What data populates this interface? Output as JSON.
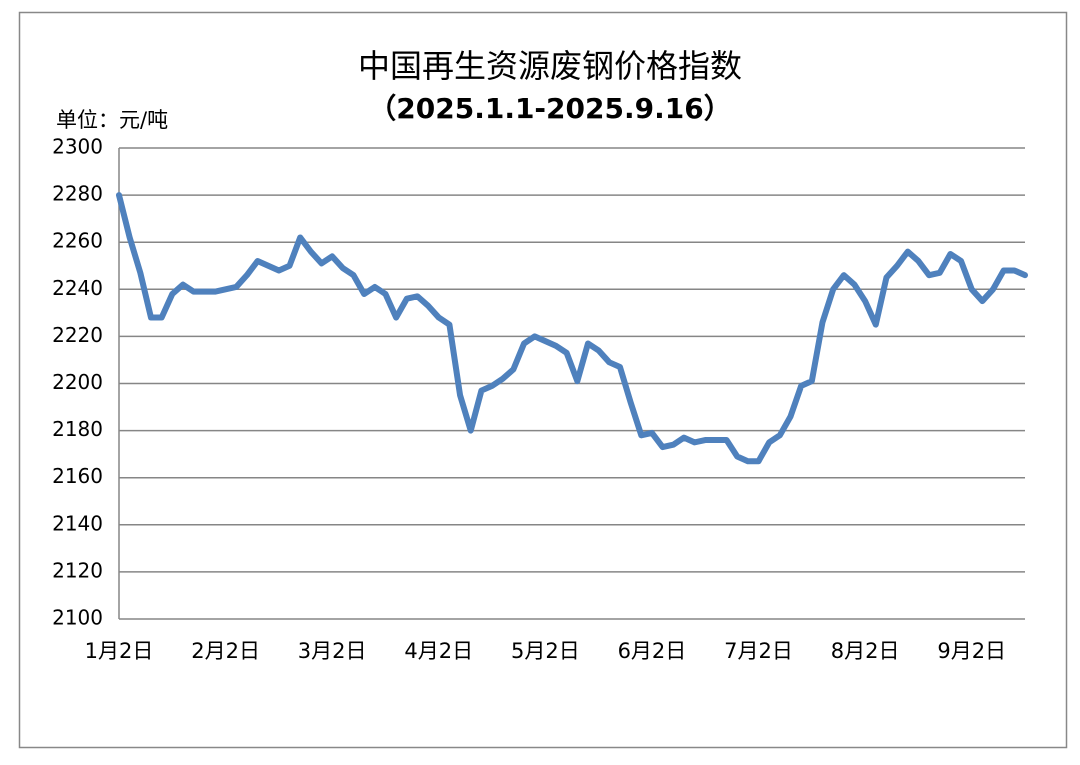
{
  "chart_data": {
    "type": "line",
    "title": "中国再生资源废钢价格指数",
    "subtitle": "（2025.1.1-2025.9.16）",
    "y_label": "单位：元/吨",
    "categories": [
      "1月2日",
      null,
      null,
      null,
      null,
      null,
      null,
      null,
      null,
      null,
      "2月2日",
      null,
      null,
      null,
      null,
      null,
      null,
      null,
      null,
      null,
      "3月2日",
      null,
      null,
      null,
      null,
      null,
      null,
      null,
      null,
      null,
      "4月2日",
      null,
      null,
      null,
      null,
      null,
      null,
      null,
      null,
      null,
      "5月2日",
      null,
      null,
      null,
      null,
      null,
      null,
      null,
      null,
      null,
      "6月2日",
      null,
      null,
      null,
      null,
      null,
      null,
      null,
      null,
      null,
      "7月2日",
      null,
      null,
      null,
      null,
      null,
      null,
      null,
      null,
      null,
      "8月2日",
      null,
      null,
      null,
      null,
      null,
      null,
      null,
      null,
      null,
      "9月2日",
      null,
      null,
      null,
      null,
      null
    ],
    "series": [
      {
        "color": "#4f81bd",
        "values": [
          2280,
          2262,
          2247,
          2228,
          2228,
          2238,
          2242,
          2239,
          2239,
          2239,
          2240,
          2241,
          2246,
          2252,
          2250,
          2248,
          2250,
          2262,
          2256,
          2251,
          2254,
          2249,
          2246,
          2238,
          2241,
          2238,
          2228,
          2236,
          2237,
          2233,
          2228,
          2225,
          2195,
          2180,
          2197,
          2199,
          2202,
          2206,
          2217,
          2220,
          2218,
          2216,
          2213,
          2201,
          2217,
          2214,
          2209,
          2207,
          2192,
          2178,
          2179,
          2173,
          2174,
          2177,
          2175,
          2176,
          2176,
          2176,
          2169,
          2167,
          2167,
          2175,
          2178,
          2186,
          2199,
          2201,
          2226,
          2240,
          2246,
          2242,
          2235,
          2225,
          2245,
          2250,
          2256,
          2252,
          2246,
          2247,
          2255,
          2252,
          2240,
          2235,
          2240,
          2248,
          2248,
          2246
        ]
      }
    ],
    "ylim": [
      2100,
      2300
    ],
    "yticks": [
      2100,
      2120,
      2140,
      2160,
      2180,
      2200,
      2220,
      2240,
      2260,
      2280,
      2300
    ],
    "grid": true
  }
}
